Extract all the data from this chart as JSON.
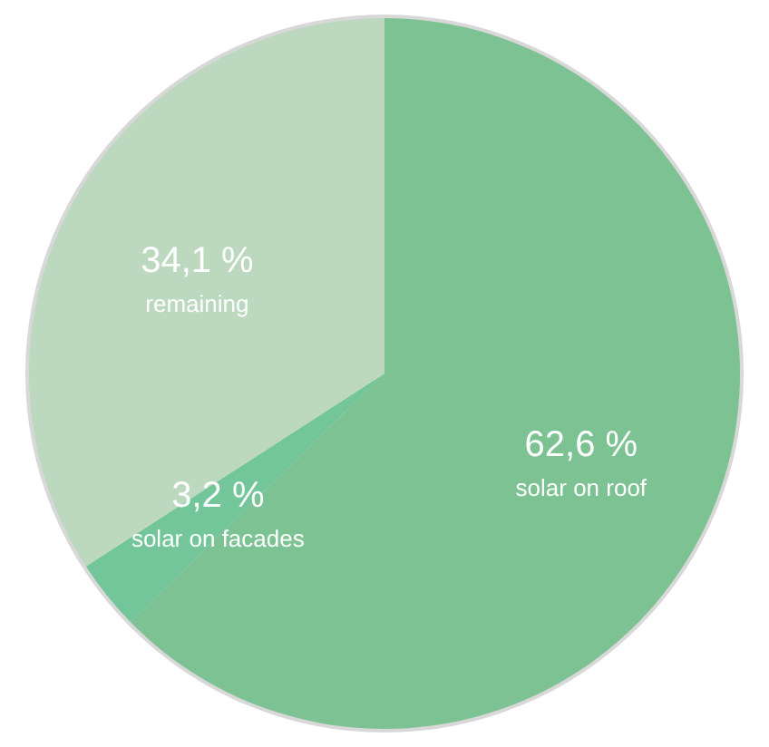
{
  "chart_data": {
    "type": "pie",
    "categories": [
      "solar on roof",
      "solar on facades",
      "remaining"
    ],
    "values": [
      62.6,
      3.2,
      34.1
    ],
    "colors": [
      "#7cc293",
      "#72c69a",
      "#bcd9bf"
    ],
    "value_labels": [
      "62,6 %",
      "3,2 %",
      "34,1 %"
    ],
    "legend": false
  }
}
